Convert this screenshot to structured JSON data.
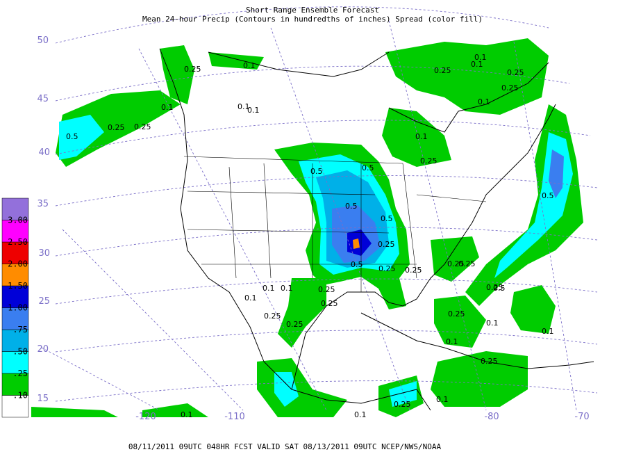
{
  "header": {
    "title": "Short Range Ensemble Forecast",
    "subtitle": "Mean 24-hour Precip (Contours in hundredths of inches) Spread (color fill)"
  },
  "footer": "08/11/2011 09UTC 048HR FCST VALID SAT 08/13/2011 09UTC  NCEP/NWS/NOAA",
  "legend": {
    "labels": [
      ".10",
      ".25",
      ".50",
      ".75",
      "1.00",
      "1.50",
      "2.00",
      "2.50",
      "3.00"
    ],
    "colors": [
      "#ffffff",
      "#00cc00",
      "#00ffff",
      "#00b0e8",
      "#3a7ef0",
      "#0000d8",
      "#ff8c00",
      "#ee0000",
      "#ff00ff",
      "#9370db"
    ]
  },
  "latitude_labels": [
    "50",
    "45",
    "40",
    "35",
    "30",
    "25",
    "20",
    "15"
  ],
  "longitude_labels": [
    "-120",
    "-110",
    "-80",
    "-70"
  ],
  "contour_labels": [
    "0.1",
    "0.25",
    "0.1",
    "0.25",
    "0.5",
    "0.25",
    "0.1",
    "0.1",
    "0.1",
    "0.25",
    "0.1",
    "0.25",
    "0.25",
    "0.1",
    "0.5",
    "0.25",
    "0.5",
    "0.5",
    "0.5",
    "0.25",
    "0.25",
    "0.5",
    "0.25",
    "0.1",
    "0.1",
    "0.1",
    "0.25",
    "0.25",
    "0.1",
    "0.25",
    "0.25",
    "0.5",
    "0.25",
    "0.1",
    "0.1",
    "0.25",
    "0.5",
    "0.25",
    "0.25",
    "0.1",
    "0.25",
    "0.1",
    "0.25",
    "0.1",
    "0.1"
  ]
}
